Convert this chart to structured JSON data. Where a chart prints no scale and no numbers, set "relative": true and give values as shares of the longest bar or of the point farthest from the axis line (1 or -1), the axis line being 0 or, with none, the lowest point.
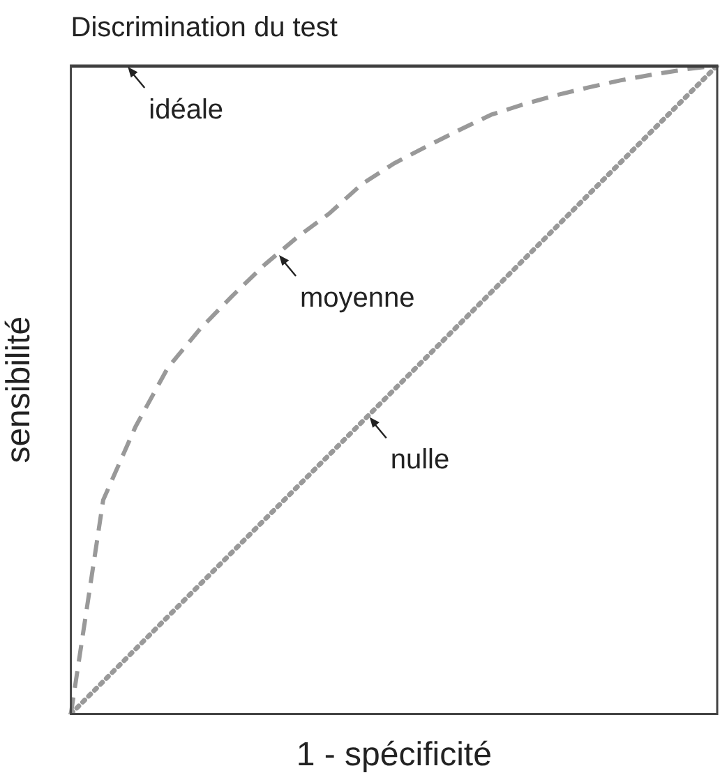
{
  "chart_data": {
    "type": "line",
    "title": "Discrimination du test",
    "xlabel": "1 - spécificité",
    "ylabel": "sensibilité",
    "relative": true,
    "legend": false,
    "grid": false,
    "marker": "none",
    "categories": [
      null,
      null,
      null,
      null,
      null,
      null,
      null,
      null,
      null,
      null,
      null,
      null,
      null,
      null,
      null,
      null,
      null,
      null,
      null,
      null,
      null
    ],
    "series": [
      {
        "color": "#333333",
        "line_style": "solid",
        "values": [
          1,
          1,
          1,
          1,
          1,
          1,
          1,
          1,
          1,
          1,
          1,
          1,
          1,
          1,
          1,
          1,
          1,
          1,
          1,
          1,
          1
        ]
      },
      {
        "color": "#999999",
        "line_style": "dashed",
        "values": [
          0,
          0.33,
          0.443,
          0.534,
          0.594,
          0.645,
          0.693,
          0.735,
          0.772,
          0.817,
          0.849,
          0.875,
          0.9,
          0.924,
          0.94,
          0.954,
          0.966,
          0.977,
          0.986,
          0.994,
          1
        ]
      },
      {
        "color": "#999999",
        "line_style": "dotted",
        "values": [
          0,
          0.05,
          0.1,
          0.15,
          0.2,
          0.25,
          0.3,
          0.35,
          0.4,
          0.45,
          0.5,
          0.55,
          0.6,
          0.65,
          0.7,
          0.75,
          0.8,
          0.85,
          0.9,
          0.95,
          1
        ]
      }
    ],
    "annotations": [
      "idéale",
      "moyenne",
      "nulle"
    ]
  }
}
